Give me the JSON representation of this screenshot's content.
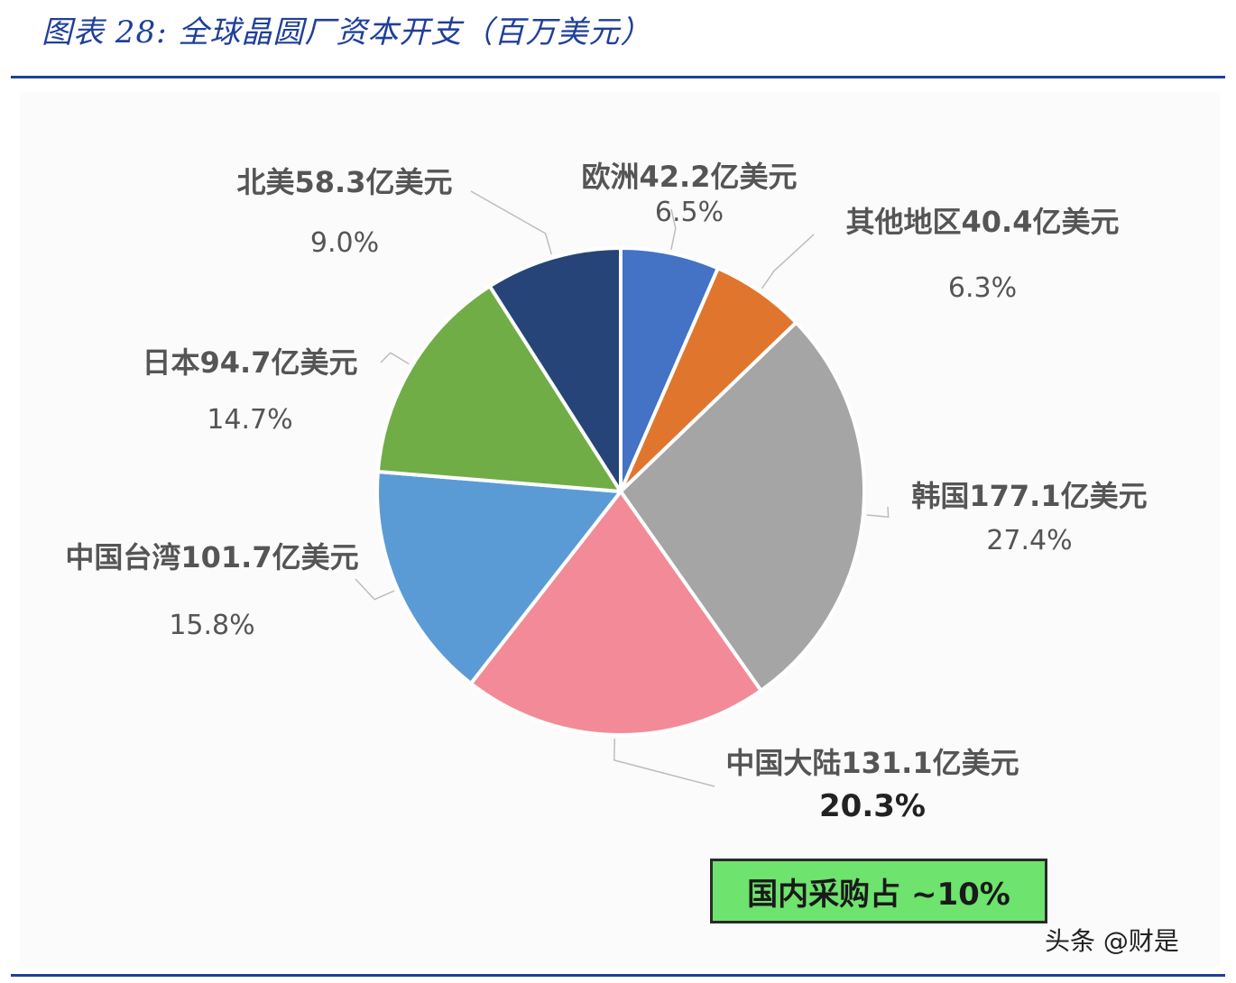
{
  "figure_title": "图表 28:  全球晶圆厂资本开支（百万美元）",
  "chart_data": {
    "type": "pie",
    "title": "",
    "start_angle_deg": 0,
    "direction": "clockwise",
    "slices": [
      {
        "name": "欧洲42.2亿美元",
        "value": 42.2,
        "percent": "6.5%",
        "color": "#4472c4"
      },
      {
        "name": "其他地区40.4亿美元",
        "value": 40.4,
        "percent": "6.3%",
        "color": "#e0762e"
      },
      {
        "name": "韩国177.1亿美元",
        "value": 177.1,
        "percent": "27.4%",
        "color": "#a5a5a5"
      },
      {
        "name": "中国大陆131.1亿美元",
        "value": 131.1,
        "percent": "20.3%",
        "color": "#f28b97"
      },
      {
        "name": "中国台湾101.7亿美元",
        "value": 101.7,
        "percent": "15.8%",
        "color": "#5b9bd5"
      },
      {
        "name": "日本94.7亿美元",
        "value": 94.7,
        "percent": "14.7%",
        "color": "#70ad47"
      },
      {
        "name": "北美58.3亿美元",
        "value": 58.3,
        "percent": "9.0%",
        "color": "#264478"
      }
    ]
  },
  "callout": "国内采购占 ~10%",
  "watermark": "头条 @财是"
}
